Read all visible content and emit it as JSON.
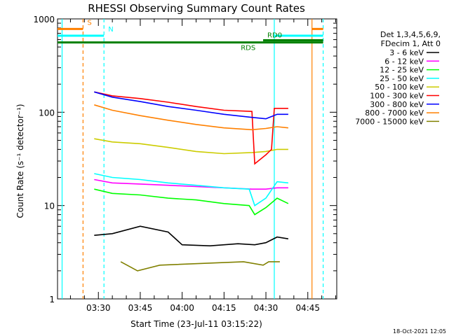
{
  "chart_data": {
    "type": "line",
    "title": "RHESSI Observing Summary Count Rates",
    "xlabel": "Start Time (23-Jul-11 03:15:22)",
    "ylabel": "Count Rate (s⁻¹ detector⁻¹)",
    "ylim": [
      1,
      1000
    ],
    "y_scale": "log",
    "y_ticks": [
      "1",
      "10",
      "100",
      "1000"
    ],
    "x_range": [
      "03:15:22",
      "04:55:22"
    ],
    "x_ticks": [
      "03:30",
      "03:45",
      "04:00",
      "04:15",
      "04:30",
      "04:45"
    ],
    "detector_info": [
      "Det 1,3,4,5,6,9,",
      "FDecim 1, Att 0"
    ],
    "footer": "18-Oct-2021 12:05",
    "legend_position": "right",
    "flags": [
      {
        "label": "S",
        "color": "#ff8000",
        "intervals": [
          [
            "03:15:22",
            "03:24:30"
          ],
          [
            "04:46:30",
            "04:50:30"
          ]
        ],
        "level": 780
      },
      {
        "label": "N",
        "color": "#00ffff",
        "intervals": [
          [
            "03:15:22",
            "03:32:00"
          ],
          [
            "04:33:00",
            "04:50:30"
          ]
        ],
        "level": 660
      },
      {
        "label": "RD0",
        "color": "#008000",
        "intervals": [
          [
            "04:29:00",
            "04:50:30"
          ]
        ],
        "level": 590
      },
      {
        "label": "RDS",
        "color": "#008000",
        "intervals": [
          [
            "03:15:22",
            "04:50:30"
          ]
        ],
        "level": 560
      }
    ],
    "vlines": [
      {
        "time": "03:17:00",
        "color": "#00ffff",
        "style": "solid"
      },
      {
        "time": "03:24:30",
        "color": "#ff8000",
        "style": "dashed"
      },
      {
        "time": "03:32:00",
        "color": "#00ffff",
        "style": "dashed"
      },
      {
        "time": "04:33:00",
        "color": "#00ffff",
        "style": "solid"
      },
      {
        "time": "04:46:30",
        "color": "#ff8000",
        "style": "solid"
      },
      {
        "time": "04:50:30",
        "color": "#00ffff",
        "style": "dashed"
      }
    ],
    "series": [
      {
        "name": "3 - 6 keV",
        "color": "#000000",
        "x": [
          "03:28:30",
          "03:35:00",
          "03:45:00",
          "03:55:00",
          "04:00:00",
          "04:10:00",
          "04:20:00",
          "04:26:00",
          "04:30:00",
          "04:34:00",
          "04:38:00"
        ],
        "values": [
          4.8,
          5.0,
          6.0,
          5.2,
          3.8,
          3.7,
          3.9,
          3.8,
          4.0,
          4.6,
          4.4
        ]
      },
      {
        "name": "6 - 12 keV",
        "color": "#ff00ff",
        "x": [
          "03:28:30",
          "03:35:00",
          "03:45:00",
          "03:55:00",
          "04:05:00",
          "04:15:00",
          "04:25:00",
          "04:30:00",
          "04:34:00",
          "04:38:00"
        ],
        "values": [
          19,
          17.5,
          17,
          16.5,
          16,
          15.5,
          15,
          15,
          15.5,
          15.5
        ]
      },
      {
        "name": "12 - 25 keV",
        "color": "#00ff00",
        "x": [
          "03:28:30",
          "03:35:00",
          "03:45:00",
          "03:55:00",
          "04:05:00",
          "04:15:00",
          "04:24:00",
          "04:26:00",
          "04:30:00",
          "04:34:00",
          "04:38:00"
        ],
        "values": [
          15,
          13.5,
          13,
          12,
          11.5,
          10.5,
          10,
          8,
          9.5,
          12,
          10.5
        ]
      },
      {
        "name": "25 - 50 keV",
        "color": "#00ffff",
        "x": [
          "03:28:30",
          "03:35:00",
          "03:45:00",
          "03:55:00",
          "04:05:00",
          "04:15:00",
          "04:24:00",
          "04:26:00",
          "04:30:00",
          "04:34:00",
          "04:38:00"
        ],
        "values": [
          22,
          20,
          19,
          17.5,
          16.5,
          15.5,
          15,
          10,
          12,
          18,
          17.5
        ]
      },
      {
        "name": "50 - 100 keV",
        "color": "#cccc00",
        "x": [
          "03:28:30",
          "03:35:00",
          "03:45:00",
          "03:55:00",
          "04:05:00",
          "04:15:00",
          "04:25:00",
          "04:30:00",
          "04:34:00",
          "04:38:00"
        ],
        "values": [
          52,
          48,
          46,
          42,
          38,
          36,
          37,
          38,
          40,
          40
        ]
      },
      {
        "name": "100 - 300 keV",
        "color": "#ff0000",
        "x": [
          "03:28:30",
          "03:35:00",
          "03:45:00",
          "03:55:00",
          "04:05:00",
          "04:15:00",
          "04:25:00",
          "04:26:00",
          "04:30:00",
          "04:32:00",
          "04:33:00",
          "04:38:00"
        ],
        "values": [
          165,
          150,
          140,
          128,
          115,
          105,
          102,
          28,
          35,
          40,
          110,
          110
        ]
      },
      {
        "name": "300 - 800 keV",
        "color": "#0000ff",
        "x": [
          "03:28:30",
          "03:35:00",
          "03:45:00",
          "03:55:00",
          "04:05:00",
          "04:15:00",
          "04:25:00",
          "04:30:00",
          "04:34:00",
          "04:38:00"
        ],
        "values": [
          165,
          145,
          130,
          115,
          105,
          95,
          88,
          85,
          95,
          95
        ]
      },
      {
        "name": "800 - 7000 keV",
        "color": "#ff8000",
        "x": [
          "03:28:30",
          "03:35:00",
          "03:45:00",
          "03:55:00",
          "04:05:00",
          "04:15:00",
          "04:25:00",
          "04:30:00",
          "04:34:00",
          "04:38:00"
        ],
        "values": [
          120,
          105,
          92,
          82,
          74,
          68,
          65,
          67,
          70,
          68
        ]
      },
      {
        "name": "7000 - 15000 keV",
        "color": "#808000",
        "x": [
          "03:38:00",
          "03:44:00",
          "03:52:00",
          "04:22:00",
          "04:29:00",
          "04:31:00",
          "04:35:00"
        ],
        "values": [
          2.5,
          2.0,
          2.3,
          2.5,
          2.3,
          2.5,
          2.5
        ]
      }
    ]
  }
}
